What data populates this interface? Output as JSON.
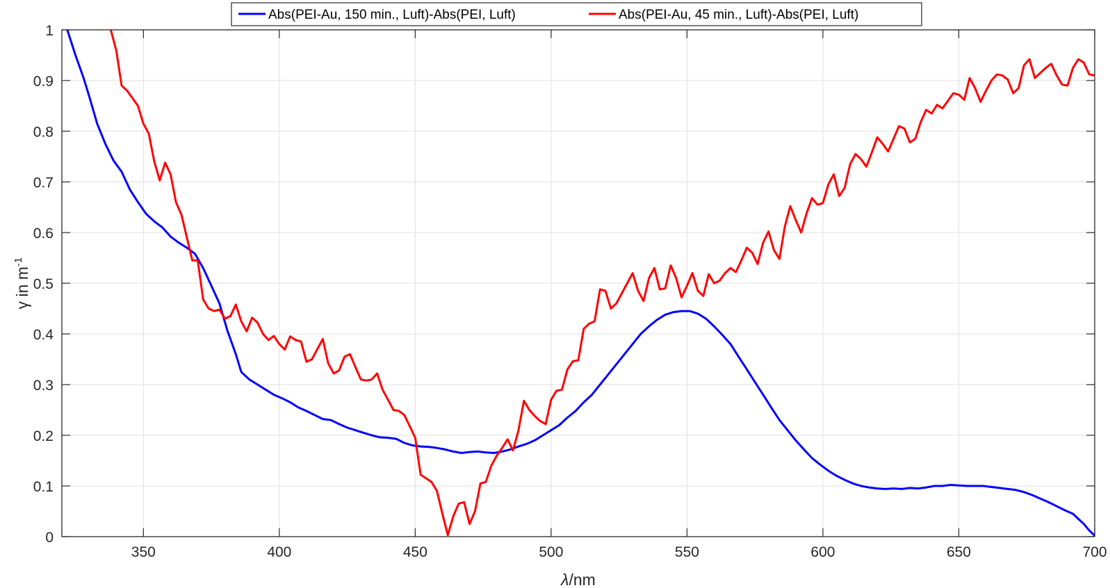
{
  "chart_data": {
    "type": "line",
    "xlabel": {
      "symbol": "λ",
      "unit": "/nm"
    },
    "ylabel": {
      "symbol": "γ",
      "text": " in m",
      "superscript": "-1"
    },
    "xlim": [
      320,
      700
    ],
    "ylim": [
      0,
      1
    ],
    "xticks": [
      350,
      400,
      450,
      500,
      550,
      600,
      650,
      700
    ],
    "yticks": [
      0,
      0.1,
      0.2,
      0.3,
      0.4,
      0.5,
      0.6,
      0.7,
      0.8,
      0.9,
      1
    ],
    "xtick_labels": [
      "350",
      "400",
      "450",
      "500",
      "550",
      "600",
      "650",
      "700"
    ],
    "ytick_labels": [
      "0",
      "0.1",
      "0.2",
      "0.3",
      "0.4",
      "0.5",
      "0.6",
      "0.7",
      "0.8",
      "0.9",
      "1"
    ],
    "grid": true,
    "legend_position": "top-center",
    "series": [
      {
        "name": "Abs(PEI-Au, 150 min., Luft)-Abs(PEI, Luft)",
        "color": "#0000FF",
        "points": [
          [
            322,
            1.0
          ],
          [
            325,
            0.95
          ],
          [
            328,
            0.905
          ],
          [
            330,
            0.87
          ],
          [
            333,
            0.815
          ],
          [
            336,
            0.775
          ],
          [
            339,
            0.742
          ],
          [
            342,
            0.72
          ],
          [
            345,
            0.685
          ],
          [
            348,
            0.66
          ],
          [
            351,
            0.637
          ],
          [
            354,
            0.622
          ],
          [
            357,
            0.61
          ],
          [
            360,
            0.592
          ],
          [
            363,
            0.58
          ],
          [
            366,
            0.57
          ],
          [
            369,
            0.558
          ],
          [
            372,
            0.53
          ],
          [
            375,
            0.495
          ],
          [
            378,
            0.46
          ],
          [
            381,
            0.405
          ],
          [
            384,
            0.36
          ],
          [
            386,
            0.325
          ],
          [
            389,
            0.31
          ],
          [
            392,
            0.3
          ],
          [
            395,
            0.29
          ],
          [
            398,
            0.28
          ],
          [
            401,
            0.273
          ],
          [
            404,
            0.265
          ],
          [
            407,
            0.255
          ],
          [
            410,
            0.248
          ],
          [
            413,
            0.24
          ],
          [
            416,
            0.232
          ],
          [
            419,
            0.23
          ],
          [
            422,
            0.222
          ],
          [
            425,
            0.215
          ],
          [
            428,
            0.21
          ],
          [
            431,
            0.205
          ],
          [
            434,
            0.2
          ],
          [
            437,
            0.196
          ],
          [
            440,
            0.195
          ],
          [
            443,
            0.193
          ],
          [
            446,
            0.185
          ],
          [
            449,
            0.18
          ],
          [
            452,
            0.178
          ],
          [
            455,
            0.177
          ],
          [
            458,
            0.175
          ],
          [
            461,
            0.172
          ],
          [
            464,
            0.168
          ],
          [
            467,
            0.165
          ],
          [
            470,
            0.167
          ],
          [
            473,
            0.168
          ],
          [
            476,
            0.166
          ],
          [
            479,
            0.165
          ],
          [
            482,
            0.168
          ],
          [
            485,
            0.172
          ],
          [
            488,
            0.178
          ],
          [
            491,
            0.183
          ],
          [
            494,
            0.19
          ],
          [
            497,
            0.2
          ],
          [
            500,
            0.21
          ],
          [
            503,
            0.22
          ],
          [
            506,
            0.235
          ],
          [
            509,
            0.248
          ],
          [
            512,
            0.265
          ],
          [
            515,
            0.28
          ],
          [
            518,
            0.3
          ],
          [
            521,
            0.32
          ],
          [
            524,
            0.34
          ],
          [
            527,
            0.36
          ],
          [
            530,
            0.38
          ],
          [
            533,
            0.4
          ],
          [
            536,
            0.415
          ],
          [
            539,
            0.428
          ],
          [
            542,
            0.438
          ],
          [
            545,
            0.443
          ],
          [
            548,
            0.445
          ],
          [
            551,
            0.445
          ],
          [
            554,
            0.44
          ],
          [
            557,
            0.43
          ],
          [
            560,
            0.415
          ],
          [
            563,
            0.398
          ],
          [
            566,
            0.38
          ],
          [
            569,
            0.355
          ],
          [
            572,
            0.33
          ],
          [
            575,
            0.305
          ],
          [
            578,
            0.28
          ],
          [
            581,
            0.255
          ],
          [
            584,
            0.23
          ],
          [
            587,
            0.21
          ],
          [
            590,
            0.19
          ],
          [
            593,
            0.172
          ],
          [
            596,
            0.155
          ],
          [
            599,
            0.142
          ],
          [
            602,
            0.13
          ],
          [
            605,
            0.12
          ],
          [
            608,
            0.112
          ],
          [
            611,
            0.105
          ],
          [
            614,
            0.1
          ],
          [
            617,
            0.097
          ],
          [
            620,
            0.095
          ],
          [
            623,
            0.094
          ],
          [
            626,
            0.095
          ],
          [
            629,
            0.094
          ],
          [
            632,
            0.096
          ],
          [
            635,
            0.095
          ],
          [
            638,
            0.097
          ],
          [
            641,
            0.1
          ],
          [
            644,
            0.1
          ],
          [
            647,
            0.102
          ],
          [
            650,
            0.101
          ],
          [
            653,
            0.1
          ],
          [
            656,
            0.1
          ],
          [
            659,
            0.1
          ],
          [
            662,
            0.098
          ],
          [
            665,
            0.096
          ],
          [
            668,
            0.094
          ],
          [
            671,
            0.092
          ],
          [
            674,
            0.088
          ],
          [
            677,
            0.082
          ],
          [
            680,
            0.075
          ],
          [
            683,
            0.068
          ],
          [
            686,
            0.06
          ],
          [
            689,
            0.052
          ],
          [
            692,
            0.045
          ],
          [
            694,
            0.035
          ],
          [
            696,
            0.025
          ],
          [
            698,
            0.012
          ],
          [
            700,
            0.002
          ]
        ]
      },
      {
        "name": "Abs(PEI-Au, 45 min., Luft)-Abs(PEI, Luft)",
        "color": "#FF0000",
        "points": [
          [
            338,
            1.0
          ],
          [
            340,
            0.96
          ],
          [
            342,
            0.89
          ],
          [
            344,
            0.88
          ],
          [
            346,
            0.865
          ],
          [
            348,
            0.85
          ],
          [
            350,
            0.815
          ],
          [
            352,
            0.795
          ],
          [
            354,
            0.74
          ],
          [
            356,
            0.703
          ],
          [
            358,
            0.738
          ],
          [
            360,
            0.715
          ],
          [
            362,
            0.66
          ],
          [
            364,
            0.635
          ],
          [
            366,
            0.59
          ],
          [
            368,
            0.545
          ],
          [
            370,
            0.545
          ],
          [
            372,
            0.468
          ],
          [
            374,
            0.45
          ],
          [
            376,
            0.445
          ],
          [
            378,
            0.448
          ],
          [
            380,
            0.43
          ],
          [
            382,
            0.435
          ],
          [
            384,
            0.458
          ],
          [
            386,
            0.425
          ],
          [
            388,
            0.405
          ],
          [
            390,
            0.432
          ],
          [
            392,
            0.422
          ],
          [
            394,
            0.4
          ],
          [
            396,
            0.388
          ],
          [
            398,
            0.396
          ],
          [
            400,
            0.38
          ],
          [
            402,
            0.369
          ],
          [
            404,
            0.395
          ],
          [
            406,
            0.388
          ],
          [
            408,
            0.385
          ],
          [
            410,
            0.345
          ],
          [
            412,
            0.35
          ],
          [
            414,
            0.37
          ],
          [
            416,
            0.39
          ],
          [
            418,
            0.342
          ],
          [
            420,
            0.322
          ],
          [
            422,
            0.328
          ],
          [
            424,
            0.355
          ],
          [
            426,
            0.36
          ],
          [
            428,
            0.335
          ],
          [
            430,
            0.31
          ],
          [
            432,
            0.308
          ],
          [
            434,
            0.31
          ],
          [
            436,
            0.322
          ],
          [
            438,
            0.29
          ],
          [
            440,
            0.27
          ],
          [
            442,
            0.25
          ],
          [
            444,
            0.248
          ],
          [
            446,
            0.24
          ],
          [
            448,
            0.218
          ],
          [
            450,
            0.195
          ],
          [
            452,
            0.122
          ],
          [
            454,
            0.115
          ],
          [
            456,
            0.108
          ],
          [
            458,
            0.09
          ],
          [
            460,
            0.045
          ],
          [
            462,
            0.003
          ],
          [
            464,
            0.04
          ],
          [
            466,
            0.065
          ],
          [
            468,
            0.068
          ],
          [
            470,
            0.025
          ],
          [
            472,
            0.05
          ],
          [
            474,
            0.105
          ],
          [
            476,
            0.108
          ],
          [
            478,
            0.14
          ],
          [
            480,
            0.16
          ],
          [
            482,
            0.175
          ],
          [
            484,
            0.192
          ],
          [
            486,
            0.17
          ],
          [
            488,
            0.21
          ],
          [
            490,
            0.268
          ],
          [
            492,
            0.25
          ],
          [
            494,
            0.238
          ],
          [
            496,
            0.228
          ],
          [
            498,
            0.222
          ],
          [
            500,
            0.27
          ],
          [
            502,
            0.288
          ],
          [
            504,
            0.29
          ],
          [
            506,
            0.33
          ],
          [
            508,
            0.346
          ],
          [
            510,
            0.348
          ],
          [
            512,
            0.41
          ],
          [
            514,
            0.42
          ],
          [
            516,
            0.425
          ],
          [
            518,
            0.488
          ],
          [
            520,
            0.485
          ],
          [
            522,
            0.45
          ],
          [
            524,
            0.46
          ],
          [
            526,
            0.48
          ],
          [
            528,
            0.5
          ],
          [
            530,
            0.52
          ],
          [
            532,
            0.485
          ],
          [
            534,
            0.465
          ],
          [
            536,
            0.51
          ],
          [
            538,
            0.53
          ],
          [
            540,
            0.488
          ],
          [
            542,
            0.49
          ],
          [
            544,
            0.535
          ],
          [
            546,
            0.51
          ],
          [
            548,
            0.472
          ],
          [
            550,
            0.495
          ],
          [
            552,
            0.52
          ],
          [
            554,
            0.485
          ],
          [
            556,
            0.475
          ],
          [
            558,
            0.518
          ],
          [
            560,
            0.5
          ],
          [
            562,
            0.505
          ],
          [
            564,
            0.52
          ],
          [
            566,
            0.53
          ],
          [
            568,
            0.522
          ],
          [
            570,
            0.545
          ],
          [
            572,
            0.57
          ],
          [
            574,
            0.56
          ],
          [
            576,
            0.538
          ],
          [
            578,
            0.58
          ],
          [
            580,
            0.602
          ],
          [
            582,
            0.565
          ],
          [
            584,
            0.548
          ],
          [
            586,
            0.612
          ],
          [
            588,
            0.652
          ],
          [
            590,
            0.625
          ],
          [
            592,
            0.6
          ],
          [
            594,
            0.638
          ],
          [
            596,
            0.668
          ],
          [
            598,
            0.655
          ],
          [
            600,
            0.658
          ],
          [
            602,
            0.695
          ],
          [
            604,
            0.715
          ],
          [
            606,
            0.672
          ],
          [
            608,
            0.688
          ],
          [
            610,
            0.735
          ],
          [
            612,
            0.755
          ],
          [
            614,
            0.745
          ],
          [
            616,
            0.73
          ],
          [
            618,
            0.758
          ],
          [
            620,
            0.788
          ],
          [
            622,
            0.775
          ],
          [
            624,
            0.76
          ],
          [
            626,
            0.785
          ],
          [
            628,
            0.81
          ],
          [
            630,
            0.805
          ],
          [
            632,
            0.778
          ],
          [
            634,
            0.785
          ],
          [
            636,
            0.818
          ],
          [
            638,
            0.842
          ],
          [
            640,
            0.835
          ],
          [
            642,
            0.852
          ],
          [
            644,
            0.845
          ],
          [
            646,
            0.86
          ],
          [
            648,
            0.875
          ],
          [
            650,
            0.872
          ],
          [
            652,
            0.862
          ],
          [
            654,
            0.905
          ],
          [
            656,
            0.885
          ],
          [
            658,
            0.858
          ],
          [
            660,
            0.88
          ],
          [
            662,
            0.9
          ],
          [
            664,
            0.912
          ],
          [
            666,
            0.91
          ],
          [
            668,
            0.902
          ],
          [
            670,
            0.875
          ],
          [
            672,
            0.885
          ],
          [
            674,
            0.93
          ],
          [
            676,
            0.942
          ],
          [
            678,
            0.905
          ],
          [
            680,
            0.915
          ],
          [
            682,
            0.925
          ],
          [
            684,
            0.933
          ],
          [
            686,
            0.91
          ],
          [
            688,
            0.892
          ],
          [
            690,
            0.89
          ],
          [
            692,
            0.925
          ],
          [
            694,
            0.942
          ],
          [
            696,
            0.935
          ],
          [
            698,
            0.912
          ],
          [
            700,
            0.91
          ]
        ]
      }
    ]
  }
}
